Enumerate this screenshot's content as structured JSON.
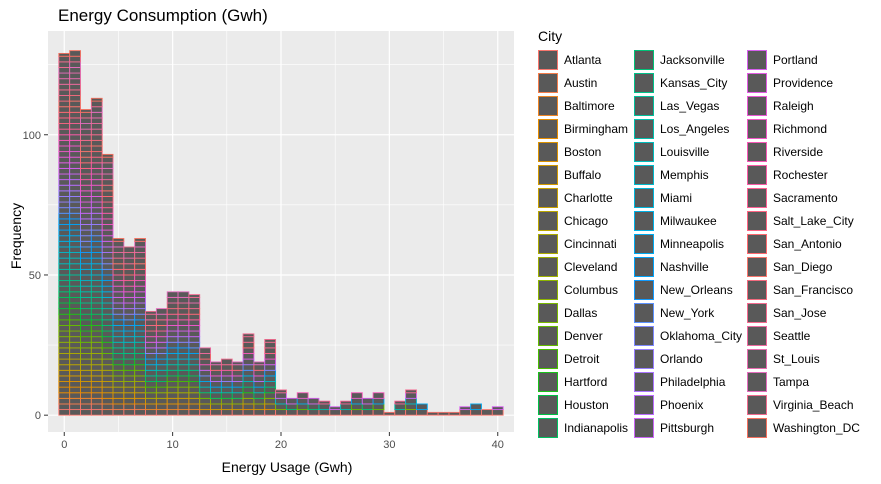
{
  "chart_data": {
    "type": "bar",
    "subtype": "stacked-histogram",
    "title": "Energy Consumption (Gwh)",
    "xlabel": "Energy Usage (Gwh)",
    "ylabel": "Frequency",
    "xlim": [
      -1.5,
      41.5
    ],
    "ylim": [
      -6,
      137
    ],
    "x_ticks": [
      0,
      10,
      20,
      30,
      40
    ],
    "y_ticks": [
      0,
      50,
      100
    ],
    "bin_width": 1,
    "panel_background": "#ebebeb",
    "bar_fill": "#595959",
    "grid": true,
    "legend_position": "right",
    "bins": [
      {
        "x": 0,
        "count": 129
      },
      {
        "x": 1,
        "count": 130
      },
      {
        "x": 2,
        "count": 109
      },
      {
        "x": 3,
        "count": 113
      },
      {
        "x": 4,
        "count": 93
      },
      {
        "x": 5,
        "count": 63
      },
      {
        "x": 6,
        "count": 60
      },
      {
        "x": 7,
        "count": 63
      },
      {
        "x": 8,
        "count": 37
      },
      {
        "x": 9,
        "count": 38
      },
      {
        "x": 10,
        "count": 44
      },
      {
        "x": 11,
        "count": 44
      },
      {
        "x": 12,
        "count": 43
      },
      {
        "x": 13,
        "count": 24
      },
      {
        "x": 14,
        "count": 19
      },
      {
        "x": 15,
        "count": 20
      },
      {
        "x": 16,
        "count": 19
      },
      {
        "x": 17,
        "count": 29
      },
      {
        "x": 18,
        "count": 19
      },
      {
        "x": 19,
        "count": 27
      },
      {
        "x": 20,
        "count": 9
      },
      {
        "x": 21,
        "count": 6
      },
      {
        "x": 22,
        "count": 8
      },
      {
        "x": 23,
        "count": 6
      },
      {
        "x": 24,
        "count": 5
      },
      {
        "x": 25,
        "count": 3
      },
      {
        "x": 26,
        "count": 5
      },
      {
        "x": 27,
        "count": 8
      },
      {
        "x": 28,
        "count": 6
      },
      {
        "x": 29,
        "count": 8
      },
      {
        "x": 30,
        "count": 1
      },
      {
        "x": 31,
        "count": 5
      },
      {
        "x": 32,
        "count": 9
      },
      {
        "x": 33,
        "count": 4
      },
      {
        "x": 34,
        "count": 1
      },
      {
        "x": 35,
        "count": 1
      },
      {
        "x": 36,
        "count": 1
      },
      {
        "x": 37,
        "count": 3
      },
      {
        "x": 38,
        "count": 4
      },
      {
        "x": 39,
        "count": 2
      },
      {
        "x": 40,
        "count": 3
      }
    ],
    "legend_title": "City",
    "series": [
      {
        "name": "Atlanta",
        "color": "#F8766D"
      },
      {
        "name": "Austin",
        "color": "#F47D4B"
      },
      {
        "name": "Baltimore",
        "color": "#EE8525"
      },
      {
        "name": "Birmingham",
        "color": "#E68C00"
      },
      {
        "name": "Boston",
        "color": "#DD9300"
      },
      {
        "name": "Buffalo",
        "color": "#D39A00"
      },
      {
        "name": "Charlotte",
        "color": "#C8A000"
      },
      {
        "name": "Chicago",
        "color": "#BBA600"
      },
      {
        "name": "Cincinnati",
        "color": "#ADAB00"
      },
      {
        "name": "Cleveland",
        "color": "#9EB000"
      },
      {
        "name": "Columbus",
        "color": "#8EB500"
      },
      {
        "name": "Dallas",
        "color": "#7AB900"
      },
      {
        "name": "Denver",
        "color": "#64BC00"
      },
      {
        "name": "Detroit",
        "color": "#48BF00"
      },
      {
        "name": "Hartford",
        "color": "#1AC21A"
      },
      {
        "name": "Houston",
        "color": "#00C146"
      },
      {
        "name": "Indianapolis",
        "color": "#00C261"
      },
      {
        "name": "Jacksonville",
        "color": "#00C277"
      },
      {
        "name": "Kansas_City",
        "color": "#00C28A"
      },
      {
        "name": "Las_Vegas",
        "color": "#00C19C"
      },
      {
        "name": "Los_Angeles",
        "color": "#00BFAD"
      },
      {
        "name": "Louisville",
        "color": "#00BCBD"
      },
      {
        "name": "Memphis",
        "color": "#00B9CC"
      },
      {
        "name": "Miami",
        "color": "#00B5DA"
      },
      {
        "name": "Milwaukee",
        "color": "#00B0E6"
      },
      {
        "name": "Minneapolis",
        "color": "#00AAF0"
      },
      {
        "name": "Nashville",
        "color": "#00A3F9"
      },
      {
        "name": "New_Orleans",
        "color": "#129BFF"
      },
      {
        "name": "New_York",
        "color": "#5C92FF"
      },
      {
        "name": "Oklahoma_City",
        "color": "#7D88FF"
      },
      {
        "name": "Orlando",
        "color": "#967EFF"
      },
      {
        "name": "Philadelphia",
        "color": "#AA75FF"
      },
      {
        "name": "Phoenix",
        "color": "#BB6CFF"
      },
      {
        "name": "Pittsburgh",
        "color": "#CA65F7"
      },
      {
        "name": "Portland",
        "color": "#D65FEE"
      },
      {
        "name": "Providence",
        "color": "#E15BE3"
      },
      {
        "name": "Raleigh",
        "color": "#EA58D6"
      },
      {
        "name": "Richmond",
        "color": "#F157C7"
      },
      {
        "name": "Riverside",
        "color": "#F658B7"
      },
      {
        "name": "Rochester",
        "color": "#FA5BA6"
      },
      {
        "name": "Sacramento",
        "color": "#FD5F94"
      },
      {
        "name": "Salt_Lake_City",
        "color": "#FE6482"
      },
      {
        "name": "San_Antonio",
        "color": "#FE696F"
      },
      {
        "name": "San_Diego",
        "color": "#F8766D"
      },
      {
        "name": "San_Francisco",
        "color": "#F26A7E"
      },
      {
        "name": "San_Jose",
        "color": "#F46A8F"
      },
      {
        "name": "Seattle",
        "color": "#EE6AA0"
      },
      {
        "name": "St_Louis",
        "color": "#E86CB0"
      },
      {
        "name": "Tampa",
        "color": "#E46DBE"
      },
      {
        "name": "Virginia_Beach",
        "color": "#F06B8E"
      },
      {
        "name": "Washington_DC",
        "color": "#F4705E"
      }
    ]
  }
}
